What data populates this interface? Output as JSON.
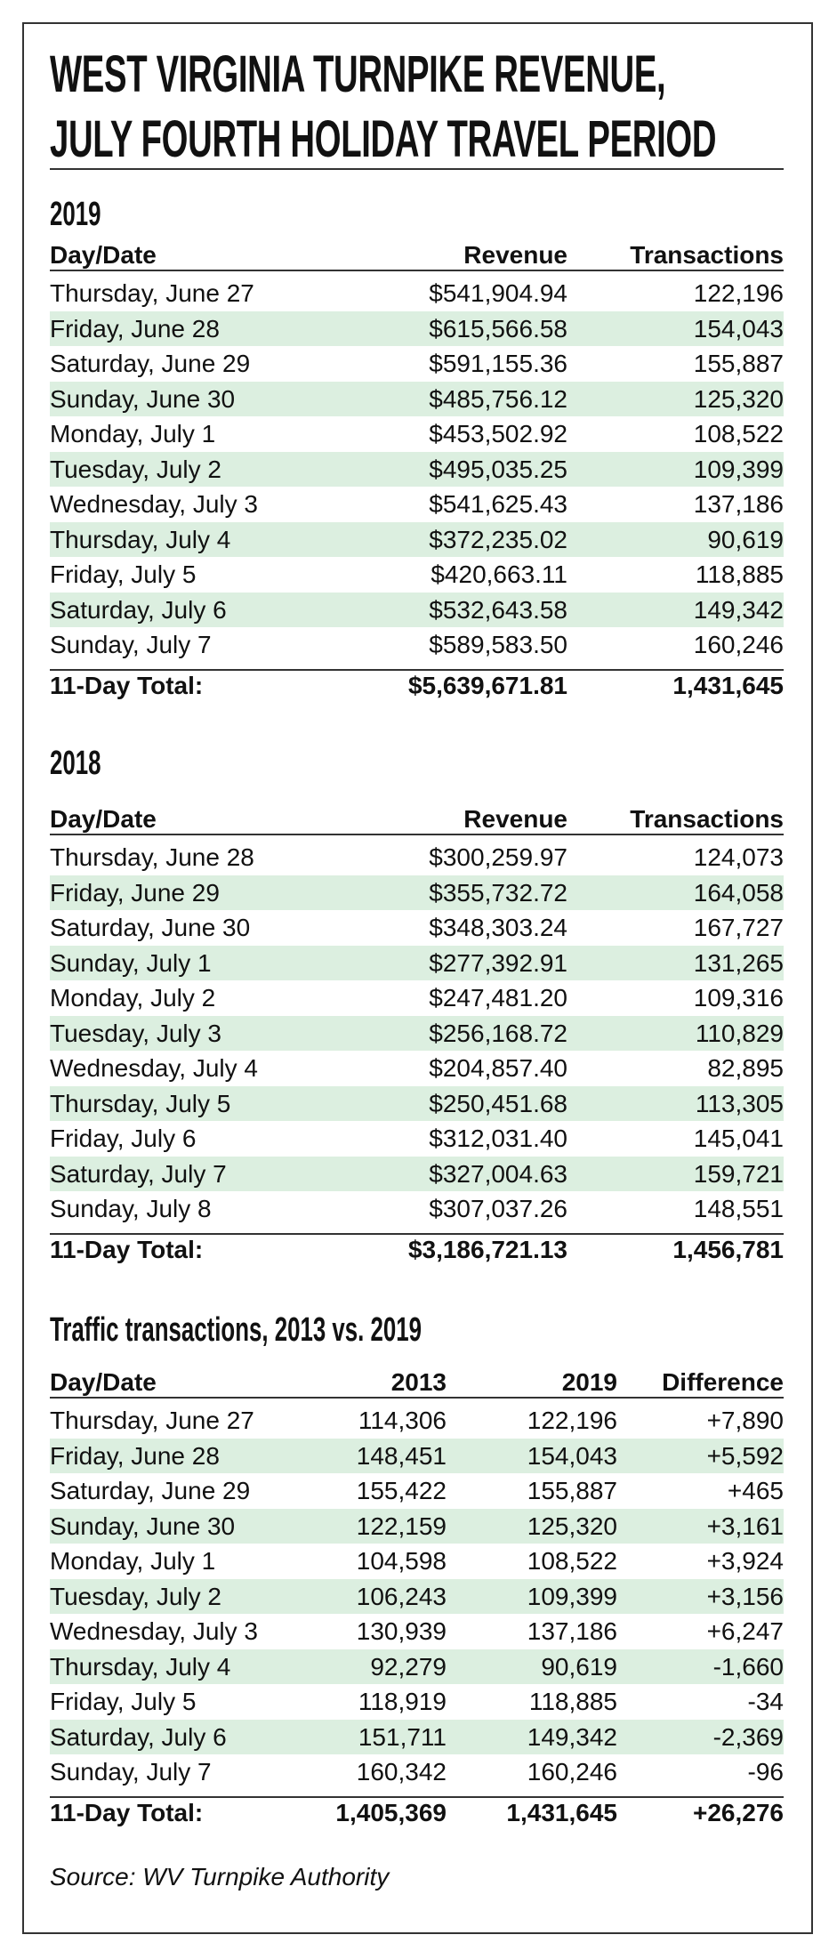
{
  "title": [
    "WEST VIRGINIA TURNPIKE REVENUE,",
    "JULY FOURTH HOLIDAY TRAVEL PERIOD"
  ],
  "sections": [
    {
      "heading": "2019",
      "columns": [
        "Day/Date",
        "Revenue",
        "Transactions"
      ],
      "rows": [
        [
          "Thursday, June 27",
          "$541,904.94",
          "122,196"
        ],
        [
          "Friday, June 28",
          "$615,566.58",
          "154,043"
        ],
        [
          "Saturday, June 29",
          "$591,155.36",
          "155,887"
        ],
        [
          "Sunday, June 30",
          "$485,756.12",
          "125,320"
        ],
        [
          "Monday, July 1",
          "$453,502.92",
          "108,522"
        ],
        [
          "Tuesday, July 2",
          "$495,035.25",
          "109,399"
        ],
        [
          "Wednesday, July 3",
          "$541,625.43",
          "137,186"
        ],
        [
          "Thursday, July 4",
          "$372,235.02",
          "90,619"
        ],
        [
          "Friday, July 5",
          "$420,663.11",
          "118,885"
        ],
        [
          "Saturday, July 6",
          "$532,643.58",
          "149,342"
        ],
        [
          "Sunday, July 7",
          "$589,583.50",
          "160,246"
        ]
      ],
      "total": [
        "11-Day Total:",
        "$5,639,671.81",
        "1,431,645"
      ]
    },
    {
      "heading": "2018",
      "columns": [
        "Day/Date",
        "Revenue",
        "Transactions"
      ],
      "rows": [
        [
          "Thursday, June 28",
          "$300,259.97",
          "124,073"
        ],
        [
          "Friday, June 29",
          "$355,732.72",
          "164,058"
        ],
        [
          "Saturday, June 30",
          "$348,303.24",
          "167,727"
        ],
        [
          "Sunday, July 1",
          "$277,392.91",
          "131,265"
        ],
        [
          "Monday, July 2",
          "$247,481.20",
          "109,316"
        ],
        [
          "Tuesday, July 3",
          "$256,168.72",
          "110,829"
        ],
        [
          "Wednesday, July 4",
          "$204,857.40",
          "82,895"
        ],
        [
          "Thursday, July 5",
          "$250,451.68",
          "113,305"
        ],
        [
          "Friday, July 6",
          "$312,031.40",
          "145,041"
        ],
        [
          "Saturday, July 7",
          "$327,004.63",
          "159,721"
        ],
        [
          "Sunday, July 8",
          "$307,037.26",
          "148,551"
        ]
      ],
      "total": [
        "11-Day Total:",
        "$3,186,721.13",
        "1,456,781"
      ]
    },
    {
      "heading": "Traffic transactions, 2013 vs. 2019",
      "columns": [
        "Day/Date",
        "2013",
        "2019",
        "Difference"
      ],
      "rows": [
        [
          "Thursday, June 27",
          "114,306",
          "122,196",
          "+7,890"
        ],
        [
          "Friday, June 28",
          "148,451",
          "154,043",
          "+5,592"
        ],
        [
          "Saturday, June 29",
          "155,422",
          "155,887",
          "+465"
        ],
        [
          "Sunday, June 30",
          "122,159",
          "125,320",
          "+3,161"
        ],
        [
          "Monday, July 1",
          "104,598",
          "108,522",
          "+3,924"
        ],
        [
          "Tuesday, July 2",
          "106,243",
          "109,399",
          "+3,156"
        ],
        [
          "Wednesday, July 3",
          "130,939",
          "137,186",
          "+6,247"
        ],
        [
          "Thursday, July 4",
          "92,279",
          "90,619",
          "-1,660"
        ],
        [
          "Friday, July 5",
          "118,919",
          "118,885",
          "-34"
        ],
        [
          "Saturday, July 6",
          "151,711",
          "149,342",
          "-2,369"
        ],
        [
          "Sunday, July 7",
          "160,342",
          "160,246",
          "-96"
        ]
      ],
      "total": [
        "11-Day Total:",
        "1,405,369",
        "1,431,645",
        "+26,276"
      ]
    }
  ],
  "source": "Source: WV Turnpike Authority"
}
